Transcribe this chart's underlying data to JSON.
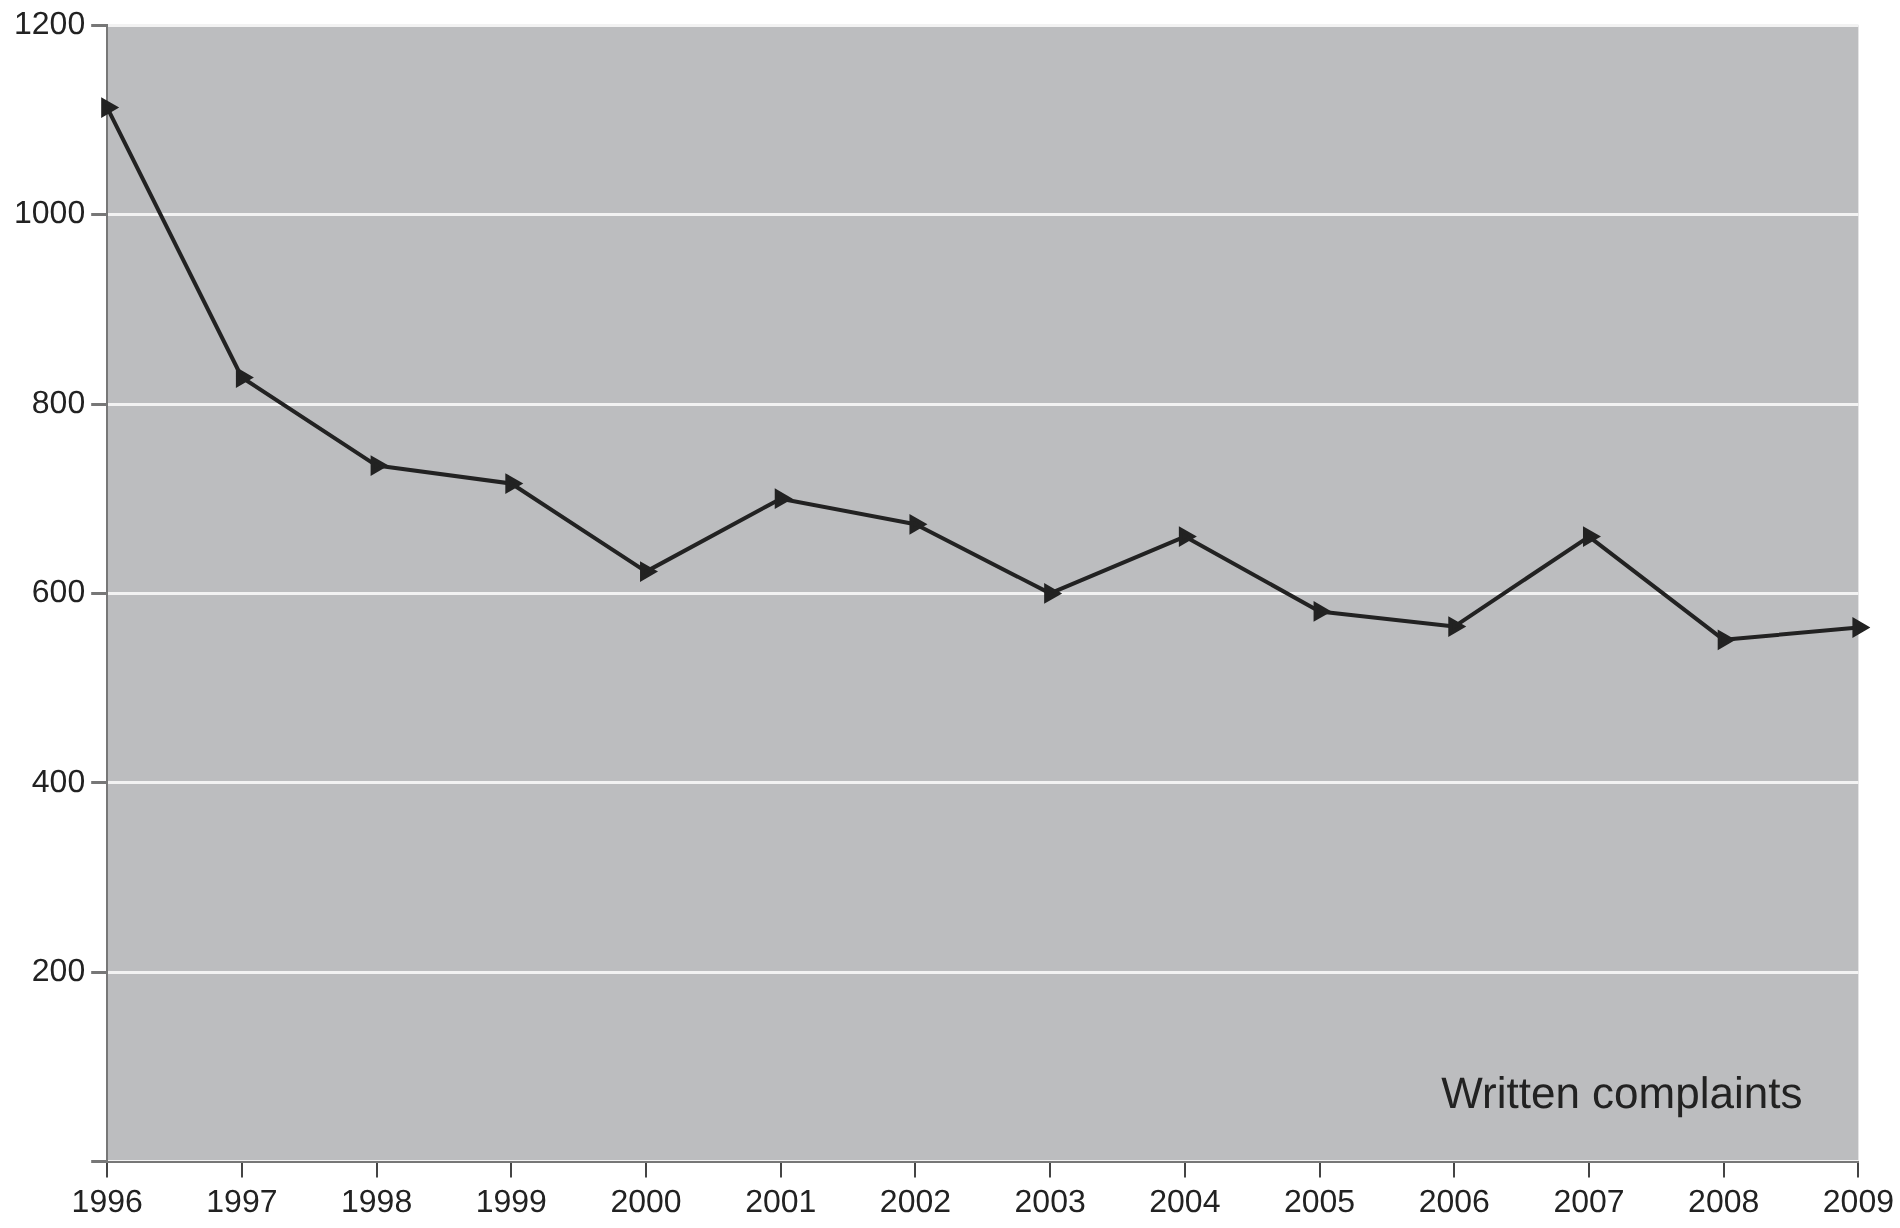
{
  "chart_data": {
    "type": "line",
    "categories": [
      "1996",
      "1997",
      "1998",
      "1999",
      "2000",
      "2001",
      "2002",
      "2003",
      "2004",
      "2005",
      "2006",
      "2007",
      "2008",
      "2009"
    ],
    "series": [
      {
        "color": "#222222",
        "values": [
          1113,
          828,
          735,
          716,
          623,
          700,
          673,
          600,
          660,
          581,
          565,
          660,
          551,
          564
        ]
      }
    ],
    "ylim": [
      0,
      1200
    ],
    "yticks": [
      {
        "value": 0,
        "label": null
      },
      200,
      400,
      600,
      800,
      1000,
      1200
    ],
    "grid": "y",
    "legend": false,
    "marker": "triangle",
    "line_style": "solid",
    "annotations": [
      "Written complaints"
    ]
  }
}
